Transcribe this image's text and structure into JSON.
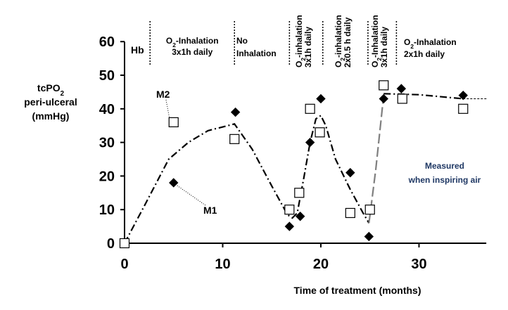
{
  "chart_data": {
    "type": "scatter",
    "xlabel": "Time of treatment (months)",
    "ylabel_lines": [
      "tcPO2",
      "peri-ulceral",
      "(mmHg)"
    ],
    "xlim": [
      0,
      37
    ],
    "ylim": [
      0,
      60
    ],
    "x_ticks": [
      0,
      10,
      20,
      30
    ],
    "y_ticks": [
      0,
      10,
      20,
      30,
      40,
      50,
      60
    ],
    "grid": false,
    "legend": "none",
    "phases": [
      {
        "x_start": 0,
        "x_end": 2.6,
        "lines": [
          "Hb"
        ],
        "orientation": "horizontal"
      },
      {
        "x_start": 2.6,
        "x_end": 11.2,
        "lines": [
          "O2-Inhalation",
          "3x1h daily"
        ],
        "orientation": "horizontal"
      },
      {
        "x_start": 11.2,
        "x_end": 16.8,
        "lines": [
          "No",
          "Inhalation"
        ],
        "orientation": "horizontal"
      },
      {
        "x_start": 16.8,
        "x_end": 20.2,
        "lines": [
          "O2-inhalation",
          "3x1h daily"
        ],
        "orientation": "vertical"
      },
      {
        "x_start": 20.2,
        "x_end": 24.8,
        "lines": [
          "O2-inhalation",
          "2x0.5 h daily"
        ],
        "orientation": "vertical"
      },
      {
        "x_start": 24.8,
        "x_end": 27.7,
        "lines": [
          "O2-Inhalation",
          "3x1h daily"
        ],
        "orientation": "vertical"
      },
      {
        "x_start": 27.7,
        "x_end": 37,
        "lines": [
          "O2-Inhalation",
          "2x1h  daily"
        ],
        "orientation": "horizontal"
      }
    ],
    "phase_boundaries": [
      2.6,
      11.2,
      16.8,
      20.2,
      24.8,
      27.7
    ],
    "series": [
      {
        "name": "M1",
        "marker": "diamond",
        "color": "#000000",
        "points": [
          [
            0,
            0
          ],
          [
            5,
            18
          ],
          [
            11.3,
            39
          ],
          [
            16.8,
            5
          ],
          [
            17.9,
            8
          ],
          [
            18.9,
            30
          ],
          [
            20,
            43
          ],
          [
            23,
            21
          ],
          [
            24.9,
            2
          ],
          [
            26.4,
            43
          ],
          [
            28.2,
            46
          ],
          [
            34.5,
            44
          ]
        ]
      },
      {
        "name": "M2",
        "marker": "square",
        "color": "#000000",
        "points": [
          [
            0,
            0
          ],
          [
            5,
            36
          ],
          [
            11.2,
            31
          ],
          [
            16.8,
            10
          ],
          [
            17.8,
            15
          ],
          [
            18.9,
            40
          ],
          [
            19.9,
            33
          ],
          [
            23,
            9
          ],
          [
            25,
            10
          ],
          [
            26.4,
            47
          ],
          [
            28.3,
            43
          ],
          [
            34.5,
            40
          ]
        ]
      }
    ],
    "trend_line": {
      "color": "#000000",
      "recovery_color": "#7f7f7f",
      "points": [
        [
          0,
          0
        ],
        [
          2,
          11
        ],
        [
          4.5,
          25
        ],
        [
          6.5,
          30
        ],
        [
          8.5,
          33.5
        ],
        [
          11.2,
          35.5
        ],
        [
          13,
          28
        ],
        [
          15,
          17
        ],
        [
          16.6,
          8.5
        ],
        [
          17.1,
          7.5
        ],
        [
          17.6,
          9
        ],
        [
          18.3,
          20
        ],
        [
          18.9,
          30
        ],
        [
          19.5,
          37
        ],
        [
          20,
          38
        ],
        [
          20.5,
          35
        ],
        [
          21.5,
          25
        ],
        [
          23,
          16
        ],
        [
          24.3,
          9
        ],
        [
          24.9,
          6
        ]
      ],
      "recovery_points": [
        [
          24.9,
          6
        ],
        [
          25.6,
          22
        ],
        [
          26.4,
          44
        ]
      ],
      "plateau_points": [
        [
          26.4,
          44.5
        ],
        [
          30,
          44.2
        ],
        [
          34.5,
          43
        ]
      ],
      "extension_points": [
        [
          34.5,
          43
        ],
        [
          37,
          43
        ]
      ]
    },
    "annotations": {
      "m1_label": "M1",
      "m2_label": "M2",
      "note_lines": [
        "Measured",
        "when inspiring air"
      ]
    }
  }
}
